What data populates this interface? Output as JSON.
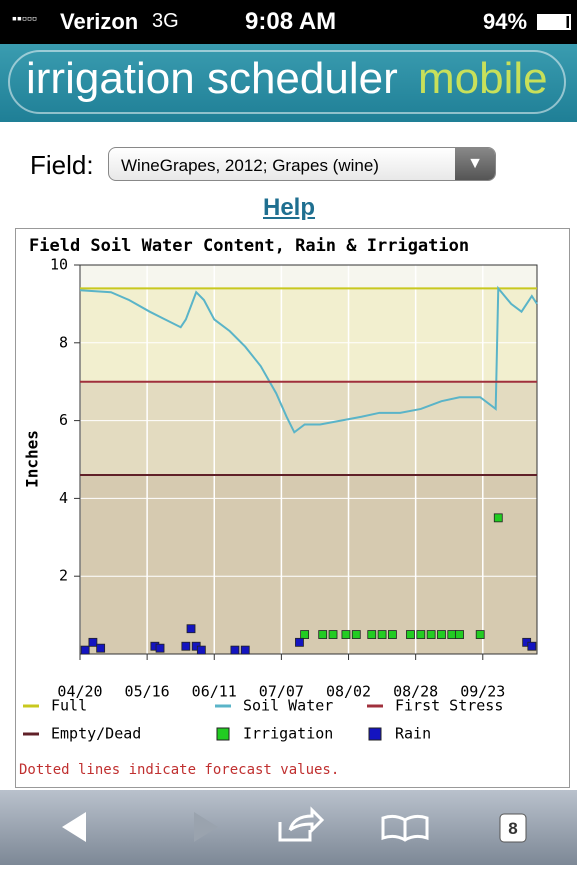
{
  "status_bar": {
    "carrier": "Verizon",
    "network": "3G",
    "time": "9:08 AM",
    "battery": "94%"
  },
  "header": {
    "title": "irrigation scheduler",
    "title_accent": "mobile"
  },
  "field": {
    "label": "Field:",
    "selected": "WineGrapes, 2012; Grapes (wine)"
  },
  "help": "Help",
  "chart_data": {
    "type": "line",
    "title": "Field Soil Water Content, Rain & Irrigation",
    "y_label": "Inches",
    "note": "Dotted lines indicate forecast values.",
    "xlim": [
      0,
      177
    ],
    "xticks": [
      {
        "value": 0,
        "label": "04/20"
      },
      {
        "value": 26,
        "label": "05/16"
      },
      {
        "value": 52,
        "label": "06/11"
      },
      {
        "value": 78,
        "label": "07/07"
      },
      {
        "value": 104,
        "label": "08/02"
      },
      {
        "value": 130,
        "label": "08/28"
      },
      {
        "value": 156,
        "label": "09/23"
      }
    ],
    "ylim": [
      0,
      10
    ],
    "yticks": [
      2,
      4,
      6,
      8,
      10
    ],
    "grid": true,
    "legend": "bottom",
    "series": [
      {
        "name": "Full",
        "kind": "line",
        "color": "#c8c81e",
        "x": [
          0,
          177
        ],
        "values": [
          9.4,
          9.4
        ]
      },
      {
        "name": "Soil Water",
        "kind": "line",
        "color": "#5ab4c8",
        "x": [
          0,
          12,
          19,
          27,
          33,
          39,
          41,
          45,
          48,
          52,
          58,
          64,
          70,
          76,
          80,
          83,
          87,
          93,
          101,
          109,
          116,
          124,
          132,
          140,
          147,
          155,
          161,
          162,
          167,
          171,
          175,
          177
        ],
        "values": [
          9.35,
          9.3,
          9.1,
          8.8,
          8.6,
          8.4,
          8.6,
          9.3,
          9.1,
          8.6,
          8.3,
          7.9,
          7.4,
          6.7,
          6.1,
          5.7,
          5.9,
          5.9,
          6.0,
          6.1,
          6.2,
          6.2,
          6.3,
          6.5,
          6.6,
          6.6,
          6.3,
          9.4,
          9.0,
          8.8,
          9.2,
          9.0
        ]
      },
      {
        "name": "First Stress",
        "kind": "line",
        "color": "#a0303c",
        "x": [
          0,
          177
        ],
        "values": [
          7,
          7
        ]
      },
      {
        "name": "Empty/Dead",
        "kind": "line",
        "color": "#602028",
        "x": [
          0,
          177
        ],
        "values": [
          4.6,
          4.6
        ]
      },
      {
        "name": "Irrigation",
        "kind": "scatter",
        "color": "#22cc22",
        "x": [
          87,
          94,
          98,
          103,
          107,
          113,
          117,
          121,
          128,
          132,
          136,
          140,
          144,
          147,
          155,
          162
        ],
        "values": [
          0.5,
          0.5,
          0.5,
          0.5,
          0.5,
          0.5,
          0.5,
          0.5,
          0.5,
          0.5,
          0.5,
          0.5,
          0.5,
          0.5,
          0.5,
          3.5
        ]
      },
      {
        "name": "Rain",
        "kind": "scatter",
        "color": "#1414c0",
        "x": [
          2,
          5,
          8,
          29,
          31,
          41,
          43,
          45,
          47,
          60,
          64,
          85,
          173,
          175
        ],
        "values": [
          0.1,
          0.3,
          0.15,
          0.2,
          0.15,
          0.2,
          0.65,
          0.2,
          0.1,
          0.1,
          0.1,
          0.3,
          0.3,
          0.2
        ]
      }
    ]
  },
  "toolbar": {
    "tabs": "8"
  }
}
